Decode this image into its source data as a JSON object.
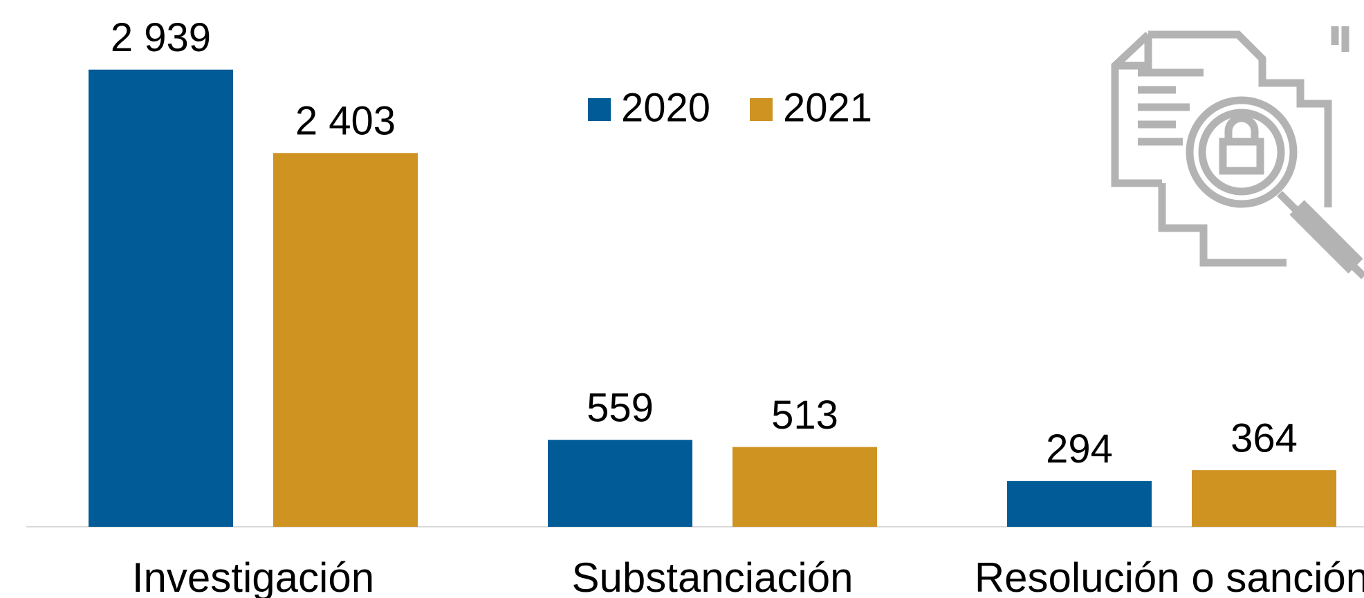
{
  "chart_data": {
    "type": "bar",
    "categories": [
      "Investigación",
      "Substanciación",
      "Resolución o sanción"
    ],
    "series": [
      {
        "name": "2020",
        "color": "#005b96",
        "values": [
          2939,
          559,
          294
        ],
        "value_labels": [
          "2 939",
          "559",
          "294"
        ]
      },
      {
        "name": "2021",
        "color": "#cf9322",
        "values": [
          2403,
          513,
          364
        ],
        "value_labels": [
          "2 403",
          "513",
          "364"
        ]
      }
    ],
    "ylim": [
      0,
      3000
    ],
    "grid": false,
    "legend": "top"
  }
}
